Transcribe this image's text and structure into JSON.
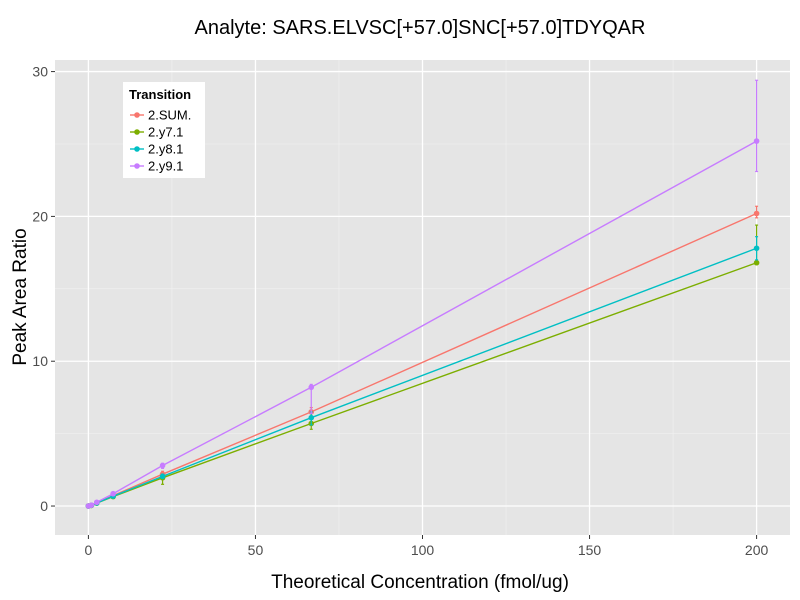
{
  "chart_data": {
    "type": "line",
    "title": "Analyte: SARS.ELVSC[+57.0]SNC[+57.0]TDYQAR",
    "xlabel": "Theoretical Concentration (fmol/ug)",
    "ylabel": "Peak Area Ratio",
    "xlim": [
      -10,
      210
    ],
    "ylim": [
      -2,
      30.8
    ],
    "x_ticks": [
      0,
      50,
      100,
      150,
      200
    ],
    "y_ticks": [
      0,
      10,
      20,
      30
    ],
    "grid": true,
    "legend": {
      "title": "Transition",
      "position": "top-left"
    },
    "series": [
      {
        "name": "2.SUM.",
        "color": "#F8766D",
        "x": [
          0,
          0.9,
          2.5,
          7.4,
          22.2,
          66.7,
          200
        ],
        "y": [
          0.0,
          0.05,
          0.22,
          0.72,
          2.2,
          6.5,
          20.2
        ],
        "err_low": [
          0.0,
          0.0,
          0.18,
          0.62,
          2.0,
          6.1,
          19.9
        ],
        "err_high": [
          0.02,
          0.08,
          0.28,
          0.85,
          2.4,
          6.8,
          20.7
        ]
      },
      {
        "name": "2.y7.1",
        "color": "#7CAE00",
        "x": [
          0,
          0.9,
          2.5,
          7.4,
          22.2,
          66.7,
          200
        ],
        "y": [
          0.0,
          0.04,
          0.2,
          0.65,
          1.95,
          5.7,
          16.8
        ],
        "err_low": [
          0.0,
          0.0,
          0.15,
          0.55,
          1.5,
          5.3,
          16.7
        ],
        "err_high": [
          0.02,
          0.07,
          0.25,
          0.78,
          2.15,
          6.1,
          19.4
        ]
      },
      {
        "name": "2.y8.1",
        "color": "#00BFC4",
        "x": [
          0,
          0.9,
          2.5,
          7.4,
          22.2,
          66.7,
          200
        ],
        "y": [
          0.0,
          0.05,
          0.21,
          0.68,
          2.05,
          6.1,
          17.8
        ],
        "err_low": [
          0.0,
          0.0,
          0.16,
          0.6,
          1.9,
          5.6,
          17.0
        ],
        "err_high": [
          0.02,
          0.08,
          0.26,
          0.8,
          2.2,
          6.5,
          18.6
        ]
      },
      {
        "name": "2.y9.1",
        "color": "#C77CFF",
        "x": [
          0,
          0.9,
          2.5,
          7.4,
          22.2,
          66.7,
          200
        ],
        "y": [
          0.0,
          0.06,
          0.26,
          0.85,
          2.8,
          8.2,
          25.2
        ],
        "err_low": [
          0.0,
          0.02,
          0.2,
          0.75,
          2.6,
          6.4,
          23.1
        ],
        "err_high": [
          0.03,
          0.1,
          0.32,
          0.95,
          2.95,
          8.4,
          29.4
        ]
      }
    ]
  }
}
